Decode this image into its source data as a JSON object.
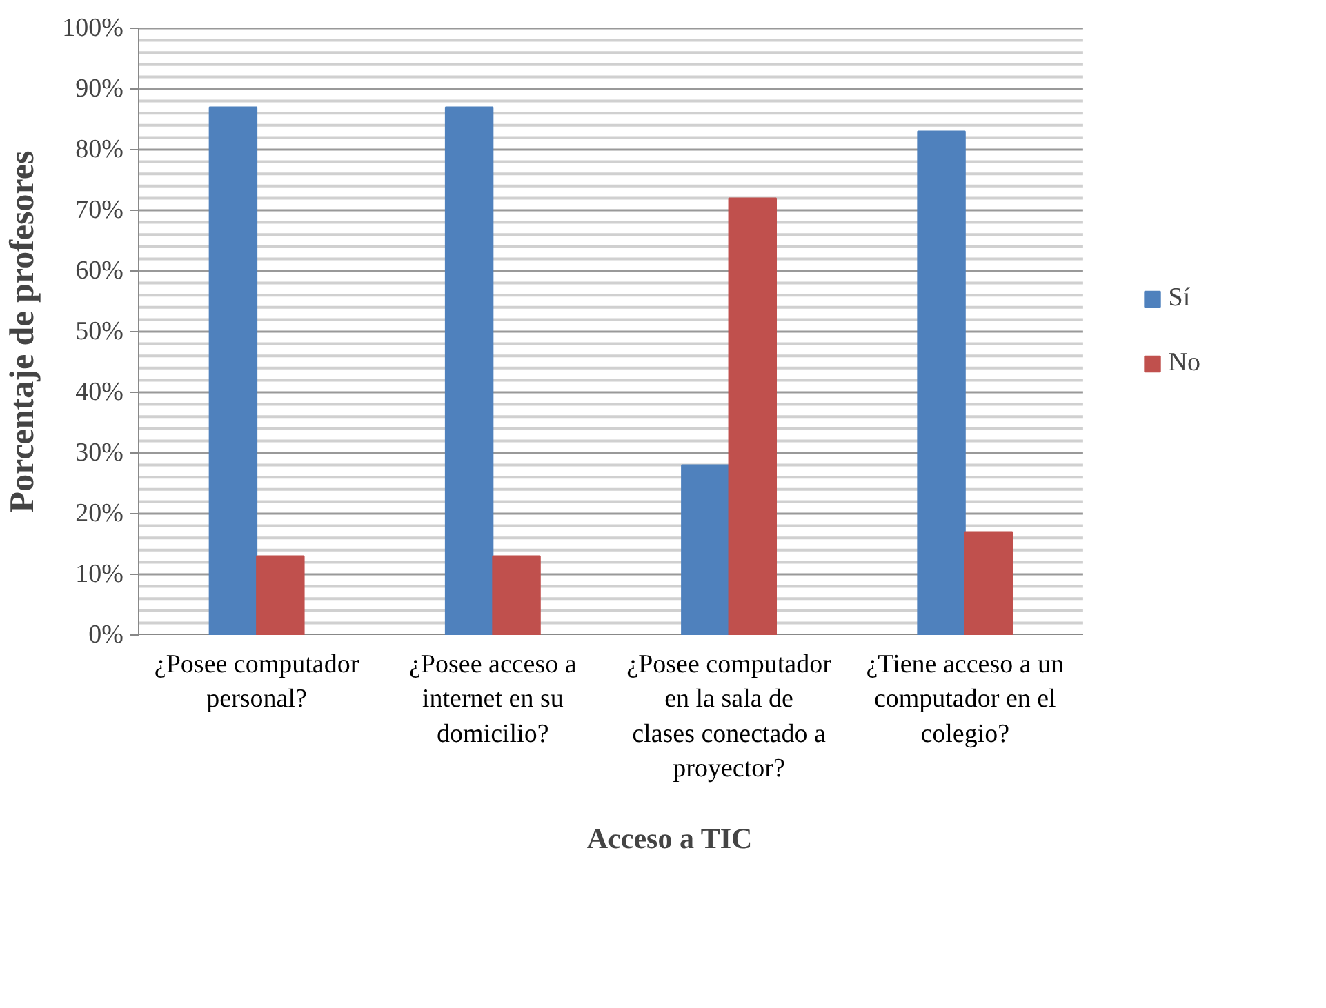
{
  "chart_data": {
    "type": "bar",
    "xlabel": "Acceso a TIC",
    "ylabel": "Porcentaje de profesores",
    "categories": [
      "¿Posee computador personal?",
      "¿Posee acceso a internet en su domicilio?",
      "¿Posee computador en la sala de clases conectado a proyector?",
      "¿Tiene acceso a un computador en el colegio?"
    ],
    "series": [
      {
        "name": "Sí",
        "color": "#4f81bd",
        "values": [
          87,
          87,
          28,
          83
        ]
      },
      {
        "name": "No",
        "color": "#c0504d",
        "values": [
          13,
          13,
          72,
          17
        ]
      }
    ],
    "ylim": [
      0,
      100
    ],
    "yticks": [
      {
        "value": 0,
        "label": "0%"
      },
      {
        "value": 10,
        "label": "10%"
      },
      {
        "value": 20,
        "label": "20%"
      },
      {
        "value": 30,
        "label": "30%"
      },
      {
        "value": 40,
        "label": "40%"
      },
      {
        "value": 50,
        "label": "50%"
      },
      {
        "value": 60,
        "label": "60%"
      },
      {
        "value": 70,
        "label": "70%"
      },
      {
        "value": 80,
        "label": "80%"
      },
      {
        "value": 90,
        "label": "90%"
      },
      {
        "value": 100,
        "label": "100%"
      }
    ],
    "grid": "y",
    "legend": "right"
  }
}
